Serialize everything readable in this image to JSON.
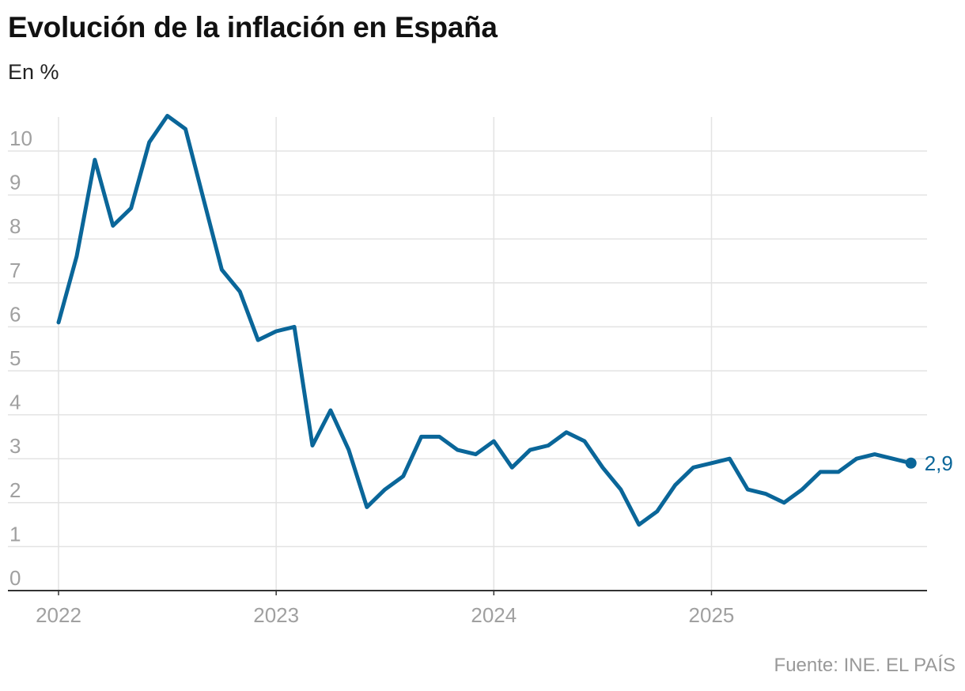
{
  "header": {
    "title": "Evolución de la inflación en España",
    "subtitle": "En %"
  },
  "footer": {
    "source": "Fuente: INE. EL PAÍS"
  },
  "colors": {
    "line": "#0a6699",
    "grid": "#e3e3e3",
    "axis": "#333333",
    "tick": "#a0a0a0"
  },
  "chart_data": {
    "type": "line",
    "title": "Evolución de la inflación en España",
    "subtitle": "En %",
    "xlabel": "",
    "ylabel": "",
    "ylim": [
      0,
      10.8
    ],
    "yticks": [
      "0",
      "1",
      "2",
      "3",
      "4",
      "5",
      "6",
      "7",
      "8",
      "9",
      "10"
    ],
    "xticks": [
      "2022",
      "2023",
      "2024",
      "2025"
    ],
    "grid": true,
    "legend": "none",
    "end_label": "2,9",
    "series": [
      {
        "values": [
          6.1,
          7.6,
          9.8,
          8.3,
          8.7,
          10.2,
          10.8,
          10.5,
          8.9,
          7.3,
          6.8,
          5.7,
          5.9,
          6.0,
          3.3,
          4.1,
          3.2,
          1.9,
          2.3,
          2.6,
          3.5,
          3.5,
          3.2,
          3.1,
          3.4,
          2.8,
          3.2,
          3.3,
          3.6,
          3.4,
          2.8,
          2.3,
          1.5,
          1.8,
          2.4,
          2.8,
          2.9,
          3.0,
          2.3,
          2.2,
          2.0,
          2.3,
          2.7,
          2.7,
          3.0,
          3.1,
          3.0,
          2.9
        ]
      }
    ]
  }
}
